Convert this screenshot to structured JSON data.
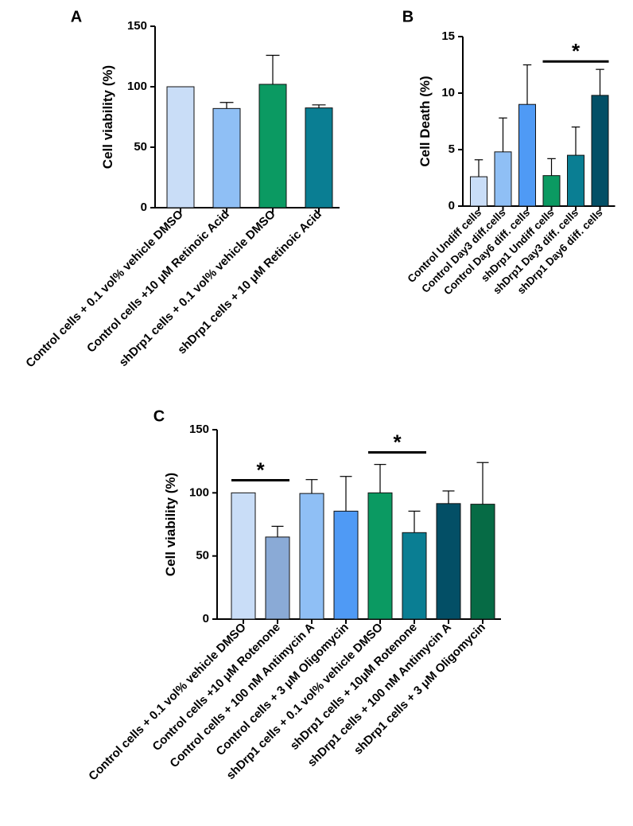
{
  "chart_data": [
    {
      "id": "A",
      "panel_label": "A",
      "type": "bar",
      "ylabel": "Cell viability (%)",
      "ylim": [
        0,
        150
      ],
      "yticks": [
        0,
        50,
        100,
        150
      ],
      "categories": [
        "Control cells + 0.1 vol% vehicle DMSO",
        "Control cells +10 μM Retinoic Acid",
        "shDrp1 cells + 0.1 vol% vehicle DMSO",
        "shDrp1 cells + 10  μM Retinoic Acid"
      ],
      "values": [
        100,
        82,
        102,
        82.5
      ],
      "errors": [
        0,
        5,
        24,
        2.5
      ],
      "colors": [
        "#c9ddf7",
        "#8fbff5",
        "#0b9a62",
        "#0a7e93"
      ],
      "significance": []
    },
    {
      "id": "B",
      "panel_label": "B",
      "type": "bar",
      "ylabel": "Cell Death (%)",
      "ylim": [
        0,
        15
      ],
      "yticks": [
        0,
        5,
        10,
        15
      ],
      "categories": [
        "Control Undiff cells",
        "Control Day3 diff.cells",
        "Control Day6 diff. cells",
        "shDrp1 Undiff cells",
        "shDrp1 Day3 diff. cells",
        "shDrp1 Day6 diff. cells"
      ],
      "values": [
        2.6,
        4.8,
        9.0,
        2.7,
        4.5,
        9.8
      ],
      "errors": [
        1.5,
        3.0,
        3.5,
        1.5,
        2.5,
        2.3
      ],
      "colors": [
        "#c9ddf7",
        "#8fbff5",
        "#4f9af5",
        "#0b9a62",
        "#0a7e93",
        "#034f66"
      ],
      "significance": [
        {
          "from": 3,
          "to": 5,
          "label": "*",
          "y": 12.8
        }
      ]
    },
    {
      "id": "C",
      "panel_label": "C",
      "type": "bar",
      "ylabel": "Cell viability (%)",
      "ylim": [
        0,
        150
      ],
      "yticks": [
        0,
        50,
        100,
        150
      ],
      "categories": [
        "Control cells + 0.1 vol% vehicle DMSO",
        "Control cells +10 μM Rotenone",
        "Control cells + 100 nM Antimycin A",
        "Control cells + 3 μM Oligomycin",
        "shDrp1 cells + 0.1 vol% vehicle DMSO",
        "shDrp1 cells + 10μM Rotenone",
        "shDrp1 cells + 100 nM Antimycin A",
        "shDrp1 cells + 3 μM Oligomycin"
      ],
      "values": [
        100,
        65,
        99.5,
        85.5,
        100,
        68.5,
        91.5,
        91
      ],
      "errors": [
        0,
        8.5,
        11,
        27.5,
        22.5,
        17,
        10,
        33
      ],
      "colors": [
        "#c9ddf7",
        "#8aaad6",
        "#8fbff5",
        "#4f9af5",
        "#0b9a62",
        "#0a7e93",
        "#034f66",
        "#066b45"
      ],
      "significance": [
        {
          "from": 0,
          "to": 1,
          "label": "*",
          "y": 110
        },
        {
          "from": 4,
          "to": 5,
          "label": "*",
          "y": 132
        }
      ]
    }
  ]
}
